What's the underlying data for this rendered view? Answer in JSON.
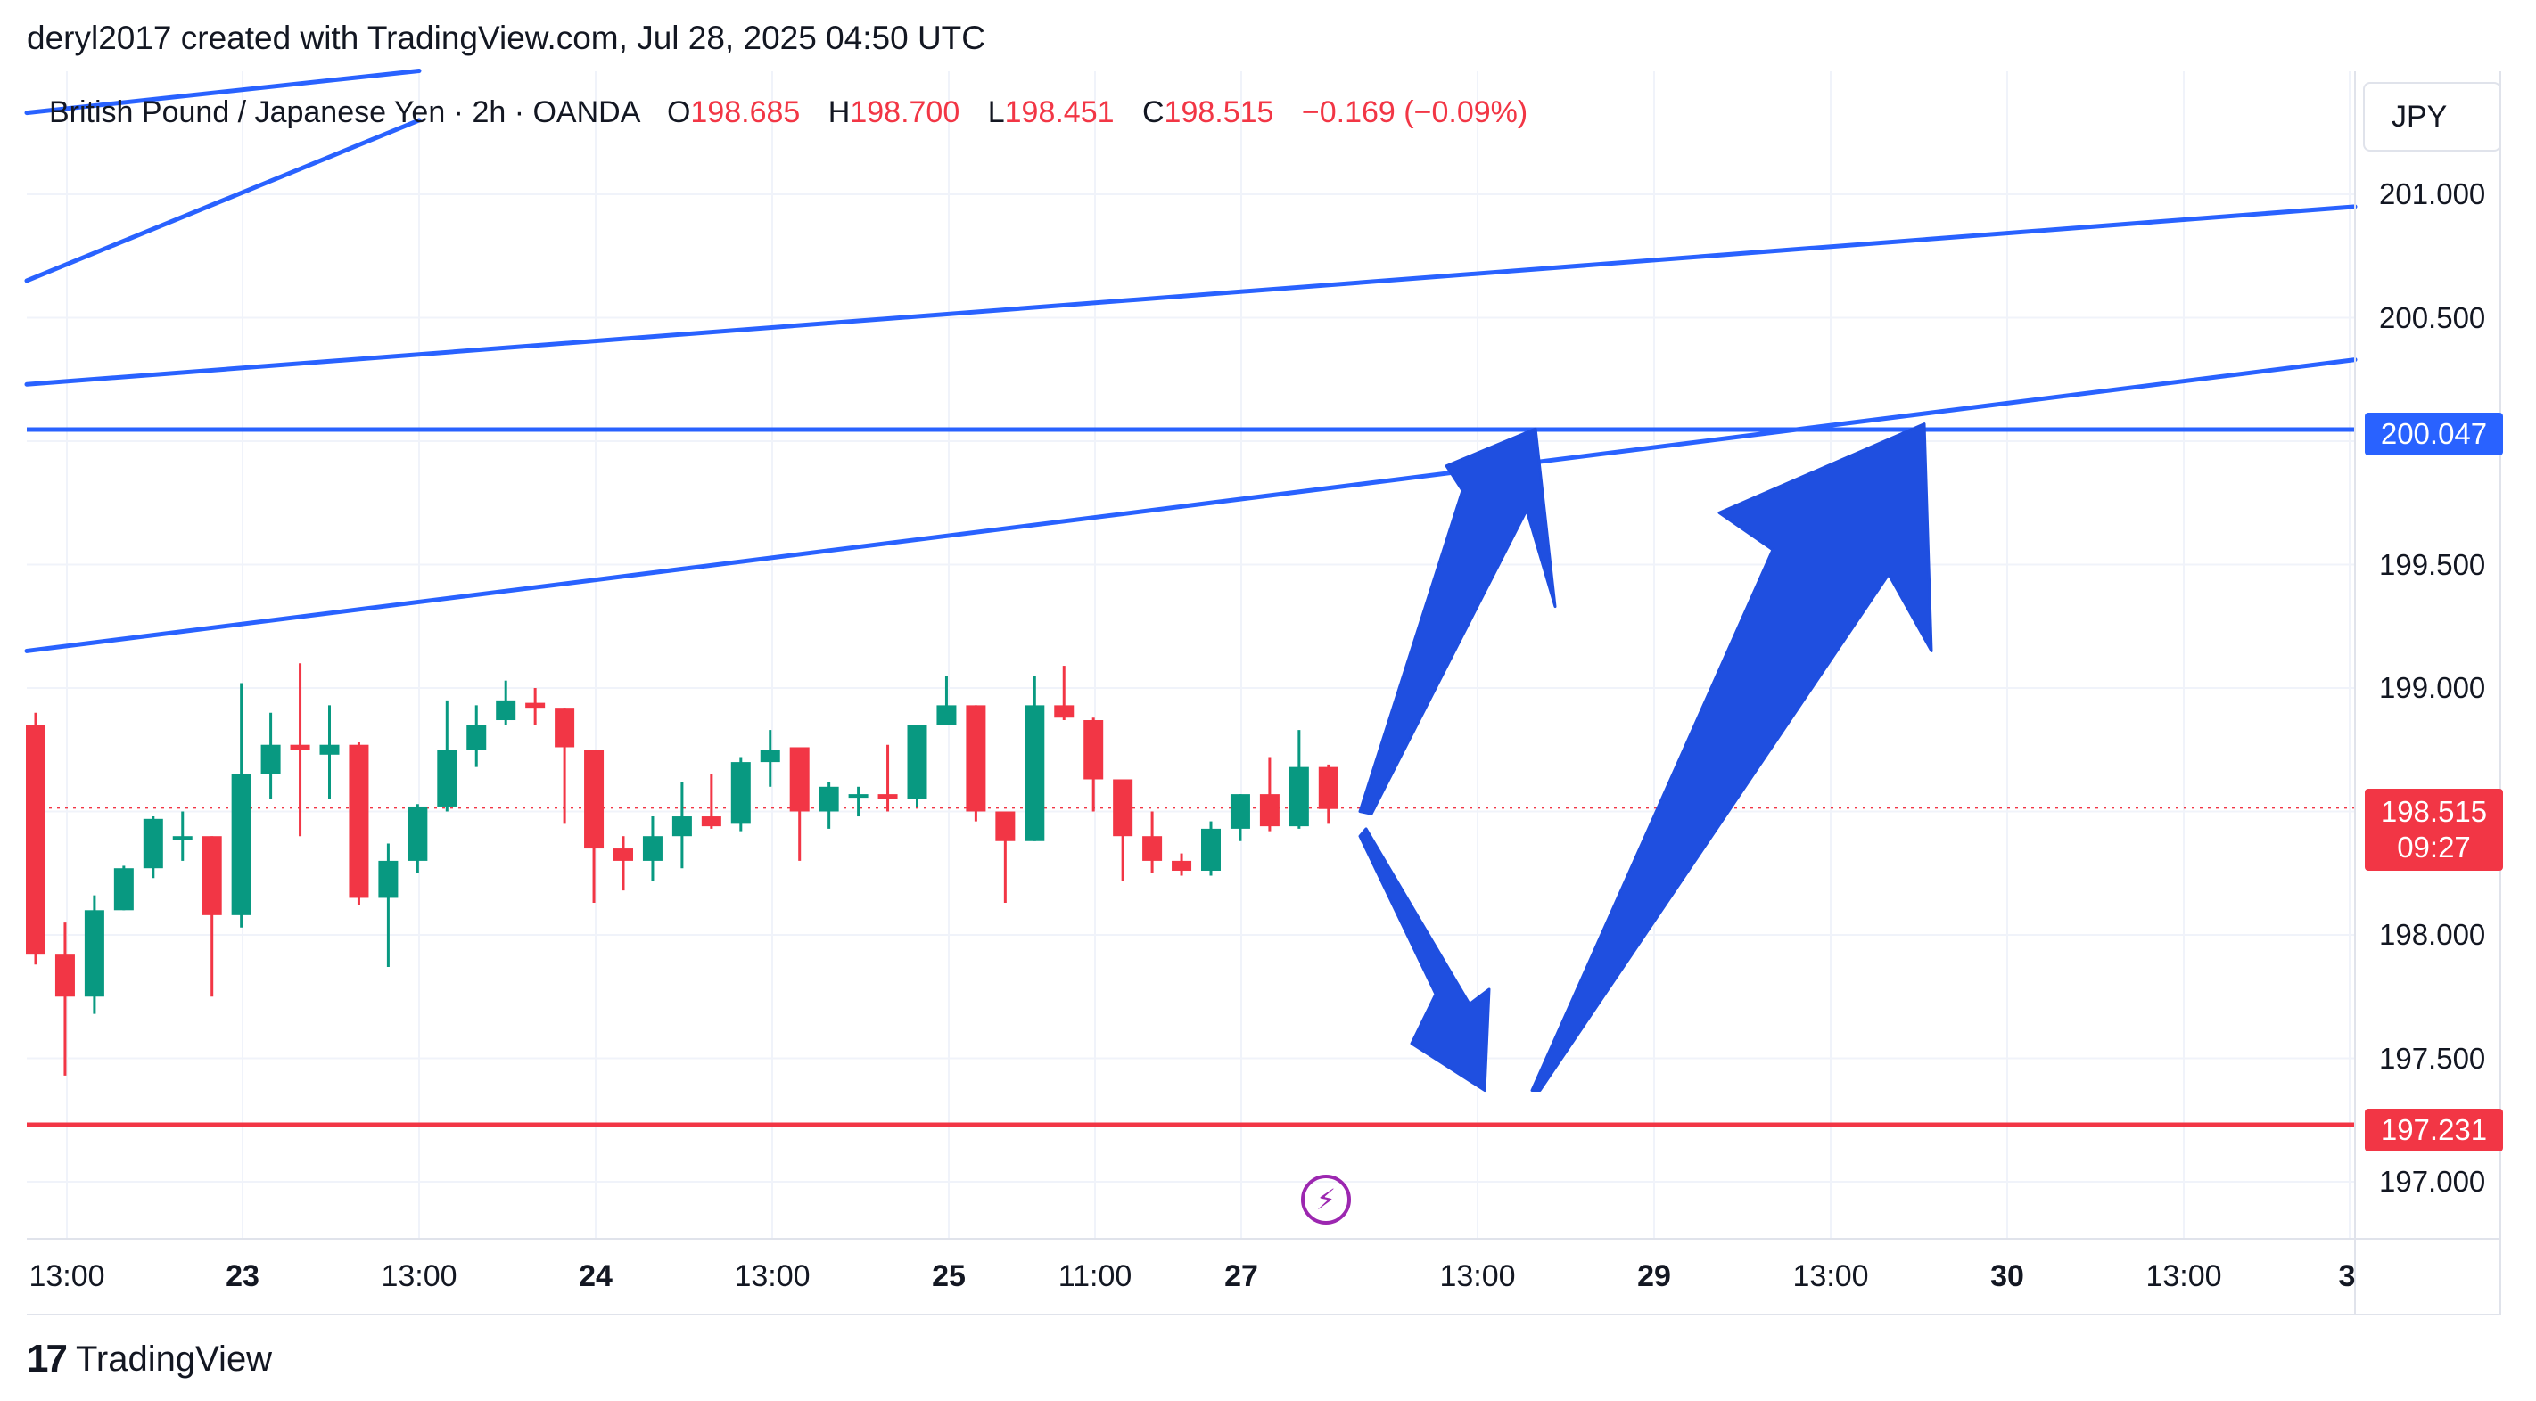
{
  "header": {
    "attribution": "deryl2017 created with TradingView.com, Jul 28, 2025 04:50 UTC"
  },
  "legend": {
    "symbol": "British Pound / Japanese Yen · 2h · OANDA",
    "o_label": "O",
    "o_value": "198.685",
    "h_label": "H",
    "h_value": "198.700",
    "l_label": "L",
    "l_value": "198.451",
    "c_label": "C",
    "c_value": "198.515",
    "change": "−0.169 (−0.09%)"
  },
  "currency_button": "JPY",
  "brand": {
    "logo": "17",
    "name": "TradingView"
  },
  "markers": {
    "bolt_icon": "lightning-bolt-icon"
  },
  "colors": {
    "up": "#089981",
    "down": "#f23645",
    "drawing_blue": "#2962ff",
    "arrow_blue": "#1f4fe0",
    "support_red": "#f23645"
  },
  "chart_data": {
    "type": "candlestick",
    "symbol": "GBPJPY",
    "interval": "2h",
    "y_axis": {
      "ticks": [
        "201.000",
        "200.500",
        "199.500",
        "199.000",
        "198.000",
        "197.500",
        "197.000"
      ],
      "ylim": [
        196.55,
        201.45
      ]
    },
    "x_axis": {
      "ticks": [
        "13:00",
        "23",
        "13:00",
        "24",
        "13:00",
        "25",
        "11:00",
        "27",
        "13:00",
        "29",
        "13:00",
        "30",
        "13:00",
        "3"
      ]
    },
    "current_price": {
      "value": "198.515",
      "countdown": "09:27"
    },
    "levels": [
      {
        "label": "200.047",
        "value": 200.047,
        "color": "#2962ff"
      },
      {
        "label": "197.231",
        "value": 197.231,
        "color": "#f23645"
      }
    ],
    "candles": [
      [
        198.85,
        198.9,
        197.88,
        197.92
      ],
      [
        197.92,
        198.05,
        197.43,
        197.75
      ],
      [
        197.75,
        198.16,
        197.68,
        198.1
      ],
      [
        198.1,
        198.28,
        198.1,
        198.27
      ],
      [
        198.27,
        198.48,
        198.23,
        198.47
      ],
      [
        198.4,
        198.5,
        198.3,
        198.4
      ],
      [
        198.4,
        198.4,
        197.75,
        198.08
      ],
      [
        198.08,
        199.02,
        198.03,
        198.65
      ],
      [
        198.65,
        198.9,
        198.55,
        198.77
      ],
      [
        198.77,
        199.1,
        198.4,
        198.75
      ],
      [
        198.73,
        198.93,
        198.55,
        198.77
      ],
      [
        198.77,
        198.78,
        198.12,
        198.15
      ],
      [
        198.15,
        198.37,
        197.87,
        198.3
      ],
      [
        198.3,
        198.53,
        198.25,
        198.52
      ],
      [
        198.52,
        198.95,
        198.5,
        198.75
      ],
      [
        198.75,
        198.93,
        198.68,
        198.85
      ],
      [
        198.87,
        199.03,
        198.85,
        198.95
      ],
      [
        198.94,
        199.0,
        198.85,
        198.92
      ],
      [
        198.92,
        198.92,
        198.45,
        198.76
      ],
      [
        198.75,
        198.75,
        198.13,
        198.35
      ],
      [
        198.35,
        198.4,
        198.18,
        198.3
      ],
      [
        198.3,
        198.48,
        198.22,
        198.4
      ],
      [
        198.4,
        198.62,
        198.27,
        198.48
      ],
      [
        198.48,
        198.65,
        198.43,
        198.44
      ],
      [
        198.45,
        198.72,
        198.42,
        198.7
      ],
      [
        198.7,
        198.83,
        198.6,
        198.75
      ],
      [
        198.76,
        198.76,
        198.3,
        198.5
      ],
      [
        198.5,
        198.62,
        198.43,
        198.6
      ],
      [
        198.57,
        198.6,
        198.48,
        198.57
      ],
      [
        198.57,
        198.77,
        198.5,
        198.55
      ],
      [
        198.55,
        198.85,
        198.52,
        198.85
      ],
      [
        198.85,
        199.05,
        198.85,
        198.93
      ],
      [
        198.93,
        198.93,
        198.46,
        198.5
      ],
      [
        198.5,
        198.5,
        198.13,
        198.38
      ],
      [
        198.38,
        199.05,
        198.38,
        198.93
      ],
      [
        198.93,
        199.09,
        198.87,
        198.88
      ],
      [
        198.87,
        198.88,
        198.5,
        198.63
      ],
      [
        198.63,
        198.63,
        198.22,
        198.4
      ],
      [
        198.4,
        198.5,
        198.25,
        198.3
      ],
      [
        198.3,
        198.33,
        198.24,
        198.26
      ],
      [
        198.26,
        198.46,
        198.24,
        198.43
      ],
      [
        198.43,
        198.57,
        198.38,
        198.57
      ],
      [
        198.57,
        198.72,
        198.42,
        198.44
      ],
      [
        198.44,
        198.83,
        198.43,
        198.68
      ],
      [
        198.68,
        198.69,
        198.45,
        198.51
      ]
    ],
    "trendlines": [
      {
        "from": [
          "Jul 22 09:00",
          200.23
        ],
        "to": [
          "Jul 30 ~15:00",
          200.95
        ],
        "color": "#2962ff"
      },
      {
        "from": [
          "Jul 22 09:00",
          199.15
        ],
        "to": [
          "Jul 30 ~15:00",
          200.33
        ],
        "color": "#2962ff"
      },
      {
        "from": [
          "Jul 22 09:00",
          201.33
        ],
        "to": [
          "Jul 23 ~13:00",
          201.5
        ],
        "color": "#2962ff"
      },
      {
        "from": [
          "Jul 22 09:00",
          200.65
        ],
        "to": [
          "Jul 23 ~13:00",
          201.3
        ],
        "color": "#2962ff"
      }
    ],
    "projection_arrows": [
      {
        "direction": "up",
        "from": 198.5,
        "to": 200.05
      },
      {
        "direction": "down",
        "from": 198.4,
        "to": 197.37
      },
      {
        "direction": "up",
        "from": 197.37,
        "to": 200.07
      }
    ]
  }
}
